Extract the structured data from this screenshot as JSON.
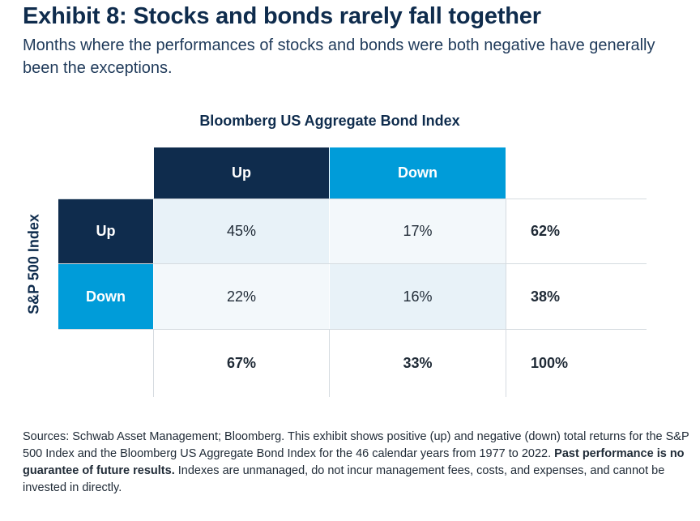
{
  "title": "Exhibit 8: Stocks and bonds rarely fall together",
  "subtitle": "Months where the performances of stocks and bonds were both negative have generally been the exceptions.",
  "chart_data": {
    "type": "table",
    "column_header": "Bloomberg US Aggregate Bond Index",
    "row_header": "S&P 500 Index",
    "columns": [
      "Up",
      "Down"
    ],
    "rows": [
      {
        "label": "Up",
        "values": [
          "45%",
          "17%"
        ],
        "total": "62%"
      },
      {
        "label": "Down",
        "values": [
          "22%",
          "16%"
        ],
        "total": "38%"
      }
    ],
    "column_totals": [
      "67%",
      "33%"
    ],
    "grand_total": "100%",
    "colors": {
      "dark": "#0f2c4d",
      "blue": "#009cd9",
      "cell_light": "#e8f2f8",
      "cell_lighter": "#f3f8fb"
    }
  },
  "sources": {
    "text_before": "Sources: Schwab Asset Management; Bloomberg. This exhibit shows positive (up) and negative (down) total returns for the S&P 500 Index and the Bloomberg US Aggregate Bond Index for the 46 calendar years from 1977 to 2022. ",
    "bold": "Past performance is no guarantee of future results.",
    "text_after": " Indexes are unmanaged, do not incur management fees, costs, and expenses, and cannot be invested in directly."
  }
}
